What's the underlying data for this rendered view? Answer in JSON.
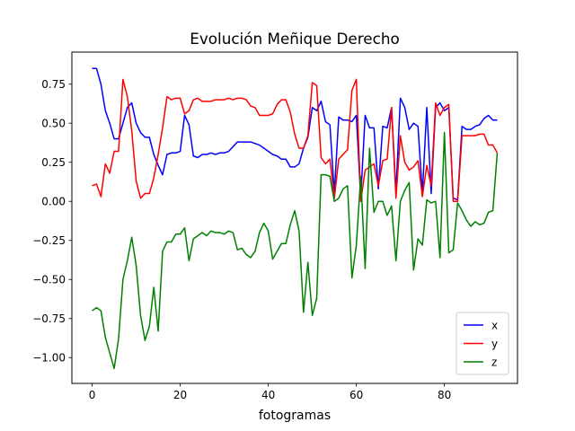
{
  "chart_data": {
    "type": "line",
    "title": "Evolución Meñique Derecho",
    "xlabel": "fotogramas",
    "ylabel": "",
    "xlim": [
      -4.6,
      96.6
    ],
    "ylim": [
      -1.165,
      0.955
    ],
    "xticks": [
      0,
      20,
      40,
      60,
      80
    ],
    "yticks": [
      -1.0,
      -0.75,
      -0.5,
      -0.25,
      0.0,
      0.25,
      0.5,
      0.75
    ],
    "ytick_labels": [
      "−1.00",
      "−0.75",
      "−0.50",
      "−0.25",
      "0.00",
      "0.25",
      "0.50",
      "0.75"
    ],
    "grid": false,
    "legend_position": "lower right",
    "series": [
      {
        "name": "x",
        "color": "#0000ff",
        "x": [
          0,
          1,
          2,
          3,
          4,
          5,
          6,
          7,
          8,
          9,
          10,
          11,
          12,
          13,
          14,
          15,
          16,
          17,
          18,
          19,
          20,
          21,
          22,
          23,
          24,
          25,
          26,
          27,
          28,
          29,
          30,
          31,
          32,
          33,
          34,
          35,
          36,
          37,
          38,
          39,
          40,
          41,
          42,
          43,
          44,
          45,
          46,
          47,
          48,
          49,
          50,
          51,
          52,
          53,
          54,
          55,
          56,
          57,
          58,
          59,
          60,
          61,
          62,
          63,
          64,
          65,
          66,
          67,
          68,
          69,
          70,
          71,
          72,
          73,
          74,
          75,
          76,
          77,
          78,
          79,
          80,
          81,
          82,
          83,
          84,
          85,
          86,
          87,
          88,
          89,
          90,
          91,
          92
        ],
        "values": [
          0.85,
          0.85,
          0.75,
          0.58,
          0.5,
          0.4,
          0.4,
          0.5,
          0.6,
          0.63,
          0.5,
          0.44,
          0.41,
          0.41,
          0.3,
          0.23,
          0.17,
          0.3,
          0.31,
          0.31,
          0.32,
          0.55,
          0.49,
          0.29,
          0.28,
          0.3,
          0.3,
          0.31,
          0.3,
          0.31,
          0.31,
          0.32,
          0.35,
          0.38,
          0.38,
          0.38,
          0.38,
          0.37,
          0.36,
          0.34,
          0.32,
          0.3,
          0.29,
          0.27,
          0.27,
          0.22,
          0.22,
          0.24,
          0.34,
          0.41,
          0.6,
          0.58,
          0.64,
          0.51,
          0.49,
          0.05,
          0.54,
          0.52,
          0.52,
          0.51,
          0.55,
          0.02,
          0.55,
          0.47,
          0.47,
          0.08,
          0.48,
          0.47,
          0.6,
          0.06,
          0.66,
          0.6,
          0.46,
          0.5,
          0.48,
          0.05,
          0.6,
          0.05,
          0.6,
          0.63,
          0.58,
          0.6,
          0.02,
          0.01,
          0.48,
          0.46,
          0.46,
          0.48,
          0.49,
          0.53,
          0.55,
          0.52,
          0.52
        ]
      },
      {
        "name": "y",
        "color": "#ff0000",
        "x": [
          0,
          1,
          2,
          3,
          4,
          5,
          6,
          7,
          8,
          9,
          10,
          11,
          12,
          13,
          14,
          15,
          16,
          17,
          18,
          19,
          20,
          21,
          22,
          23,
          24,
          25,
          26,
          27,
          28,
          29,
          30,
          31,
          32,
          33,
          34,
          35,
          36,
          37,
          38,
          39,
          40,
          41,
          42,
          43,
          44,
          45,
          46,
          47,
          48,
          49,
          50,
          51,
          52,
          53,
          54,
          55,
          56,
          57,
          58,
          59,
          60,
          61,
          62,
          63,
          64,
          65,
          66,
          67,
          68,
          69,
          70,
          71,
          72,
          73,
          74,
          75,
          76,
          77,
          78,
          79,
          80,
          81,
          82,
          83,
          84,
          85,
          86,
          87,
          88,
          89,
          90,
          91,
          92
        ],
        "values": [
          0.1,
          0.11,
          0.03,
          0.24,
          0.18,
          0.32,
          0.32,
          0.78,
          0.67,
          0.45,
          0.13,
          0.02,
          0.05,
          0.05,
          0.15,
          0.3,
          0.47,
          0.67,
          0.65,
          0.66,
          0.66,
          0.56,
          0.58,
          0.65,
          0.66,
          0.64,
          0.64,
          0.64,
          0.65,
          0.65,
          0.65,
          0.66,
          0.65,
          0.66,
          0.66,
          0.65,
          0.61,
          0.6,
          0.55,
          0.55,
          0.55,
          0.56,
          0.62,
          0.65,
          0.65,
          0.57,
          0.43,
          0.34,
          0.34,
          0.42,
          0.76,
          0.74,
          0.28,
          0.24,
          0.27,
          0.02,
          0.27,
          0.3,
          0.33,
          0.71,
          0.78,
          0.0,
          0.2,
          0.22,
          0.24,
          0.1,
          0.26,
          0.27,
          0.6,
          0.02,
          0.42,
          0.25,
          0.2,
          0.22,
          0.26,
          0.03,
          0.23,
          0.1,
          0.63,
          0.55,
          0.6,
          0.62,
          0.0,
          0.0,
          0.42,
          0.42,
          0.42,
          0.42,
          0.43,
          0.43,
          0.36,
          0.36,
          0.31
        ]
      },
      {
        "name": "z",
        "color": "#008000",
        "x": [
          0,
          1,
          2,
          3,
          4,
          5,
          6,
          7,
          8,
          9,
          10,
          11,
          12,
          13,
          14,
          15,
          16,
          17,
          18,
          19,
          20,
          21,
          22,
          23,
          24,
          25,
          26,
          27,
          28,
          29,
          30,
          31,
          32,
          33,
          34,
          35,
          36,
          37,
          38,
          39,
          40,
          41,
          42,
          43,
          44,
          45,
          46,
          47,
          48,
          49,
          50,
          51,
          52,
          53,
          54,
          55,
          56,
          57,
          58,
          59,
          60,
          61,
          62,
          63,
          64,
          65,
          66,
          67,
          68,
          69,
          70,
          71,
          72,
          73,
          74,
          75,
          76,
          77,
          78,
          79,
          80,
          81,
          82,
          83,
          84,
          85,
          86,
          87,
          88,
          89,
          90,
          91,
          92
        ],
        "values": [
          -0.7,
          -0.68,
          -0.7,
          -0.87,
          -0.97,
          -1.07,
          -0.88,
          -0.5,
          -0.38,
          -0.23,
          -0.41,
          -0.73,
          -0.89,
          -0.8,
          -0.55,
          -0.83,
          -0.32,
          -0.26,
          -0.26,
          -0.21,
          -0.21,
          -0.17,
          -0.38,
          -0.24,
          -0.22,
          -0.2,
          -0.22,
          -0.19,
          -0.2,
          -0.2,
          -0.21,
          -0.19,
          -0.2,
          -0.31,
          -0.3,
          -0.34,
          -0.36,
          -0.32,
          -0.2,
          -0.14,
          -0.19,
          -0.37,
          -0.32,
          -0.27,
          -0.27,
          -0.15,
          -0.06,
          -0.19,
          -0.71,
          -0.39,
          -0.73,
          -0.62,
          0.17,
          0.17,
          0.16,
          0.0,
          0.02,
          0.08,
          0.1,
          -0.49,
          -0.28,
          0.16,
          -0.43,
          0.34,
          -0.07,
          0.0,
          0.0,
          -0.09,
          -0.03,
          -0.38,
          0.0,
          0.07,
          0.12,
          -0.44,
          -0.24,
          -0.28,
          0.01,
          -0.01,
          0.0,
          -0.36,
          0.44,
          -0.33,
          -0.31,
          -0.01,
          -0.06,
          -0.12,
          -0.16,
          -0.13,
          -0.15,
          -0.14,
          -0.07,
          -0.06,
          0.31
        ]
      }
    ]
  }
}
